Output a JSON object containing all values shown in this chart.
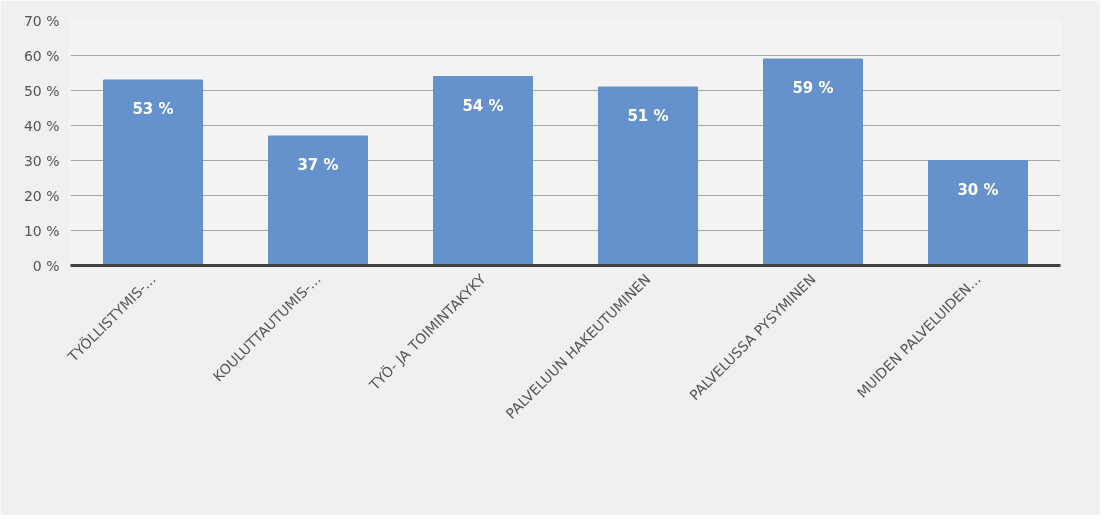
{
  "chart_data": {
    "type": "bar",
    "categories": [
      "TYÖLLISTYMIS-...",
      "KOULUTTAUTUMIS-...",
      "TYÖ- JA TOIMINTAKYKY",
      "PALVELUUN HAKEUTUMINEN",
      "PALVELUSSA PYSYMINEN",
      "MUIDEN PALVELUIDEN..."
    ],
    "values": [
      53,
      37,
      54,
      51,
      59,
      30
    ],
    "value_labels": [
      "53 %",
      "37 %",
      "54 %",
      "51 %",
      "59 %",
      "30 %"
    ],
    "color": "#6592cc",
    "ylim": [
      0,
      70
    ],
    "yticks": [
      {
        "value": 0,
        "label": "0 %"
      },
      {
        "value": 10,
        "label": "10 %"
      },
      {
        "value": 20,
        "label": "20 %"
      },
      {
        "value": 30,
        "label": "30 %"
      },
      {
        "value": 40,
        "label": "40 %"
      },
      {
        "value": 50,
        "label": "50 %"
      },
      {
        "value": 60,
        "label": "60 %"
      },
      {
        "value": 70,
        "label": "70 %"
      }
    ],
    "grid": "y"
  }
}
